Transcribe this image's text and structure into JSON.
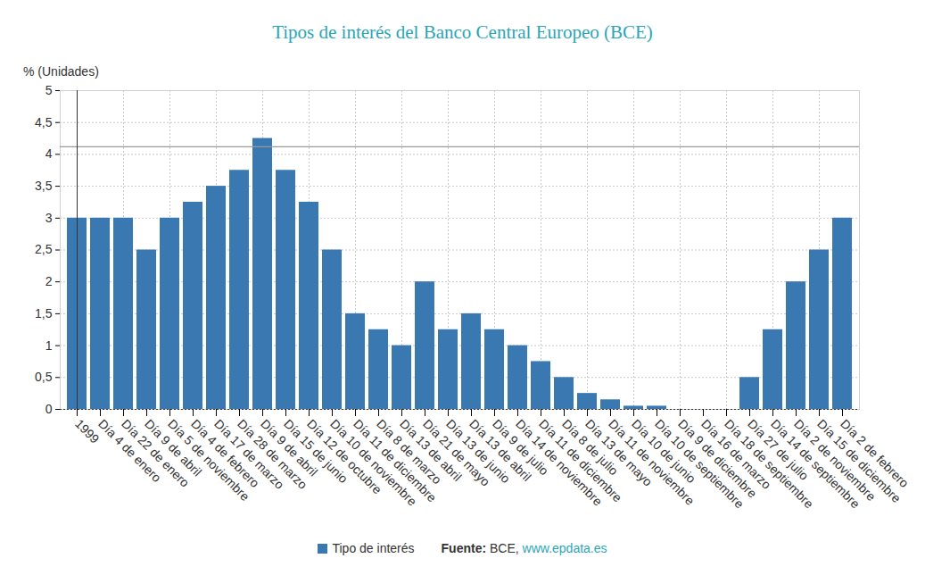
{
  "chart_data": {
    "type": "bar",
    "title": "Tipos de interés del Banco Central Europeo (BCE)",
    "y_label": "% (Unidades)",
    "categories": [
      "1999",
      "Día 4 de enero",
      "Día 22 de enero",
      "Día 9 de abril",
      "Día 5 de noviembre",
      "Día 4 de febrero",
      "Día 17 de marzo",
      "Día 28 de marzo",
      "Día 9 de abril",
      "Día 15 de junio",
      "Día 12 de octubre",
      "Día 10 de noviembre",
      "Día 11 de diciembre",
      "Día 8 de marzo",
      "Día 13 de abril",
      "Día 21 de mayo",
      "Día 13 de junio",
      "Día 13 de abril",
      "Día 9 de julio",
      "Día 14 de noviembre",
      "Día 11 de diciembre",
      "Día 8 de julio",
      "Día 13 de mayo",
      "Día 11 de noviembre",
      "Día 10 de junio",
      "Día 10 de septiembre",
      "Día 9 de diciembre",
      "Día 16 de marzo",
      "Día 18 de septiembre",
      "Día 27 de julio",
      "Día 14 de septiembre",
      "Día 2 de noviembre",
      "Día 15 de diciembre",
      "Día 2 de febrero"
    ],
    "series": [
      {
        "name": "Tipo de interés",
        "color": "#3a78b2",
        "values": [
          3,
          3,
          3,
          2.5,
          3,
          3.25,
          3.5,
          3.75,
          4.25,
          3.75,
          3.25,
          2.5,
          1.5,
          1.25,
          1,
          2,
          1.25,
          1.5,
          1.25,
          1,
          0.75,
          0.5,
          0.25,
          0.15,
          0.05,
          0.05,
          0,
          0,
          0,
          0.5,
          1.25,
          2,
          2.5,
          3
        ]
      }
    ],
    "reference_line": 4.12,
    "ylim": [
      0,
      5
    ],
    "yticks": [
      0,
      {
        "value": 0.5,
        "label": "0,5"
      },
      1,
      {
        "value": 1.5,
        "label": "1,5"
      },
      2,
      {
        "value": 2.5,
        "label": "2,5"
      },
      3,
      {
        "value": 3.5,
        "label": "3,5"
      },
      4,
      {
        "value": 4.5,
        "label": "4,5"
      },
      5
    ],
    "grid": true,
    "legend": "bottom",
    "source": {
      "label": "Fuente:",
      "text": "BCE,",
      "link": "www.epdata.es"
    }
  }
}
